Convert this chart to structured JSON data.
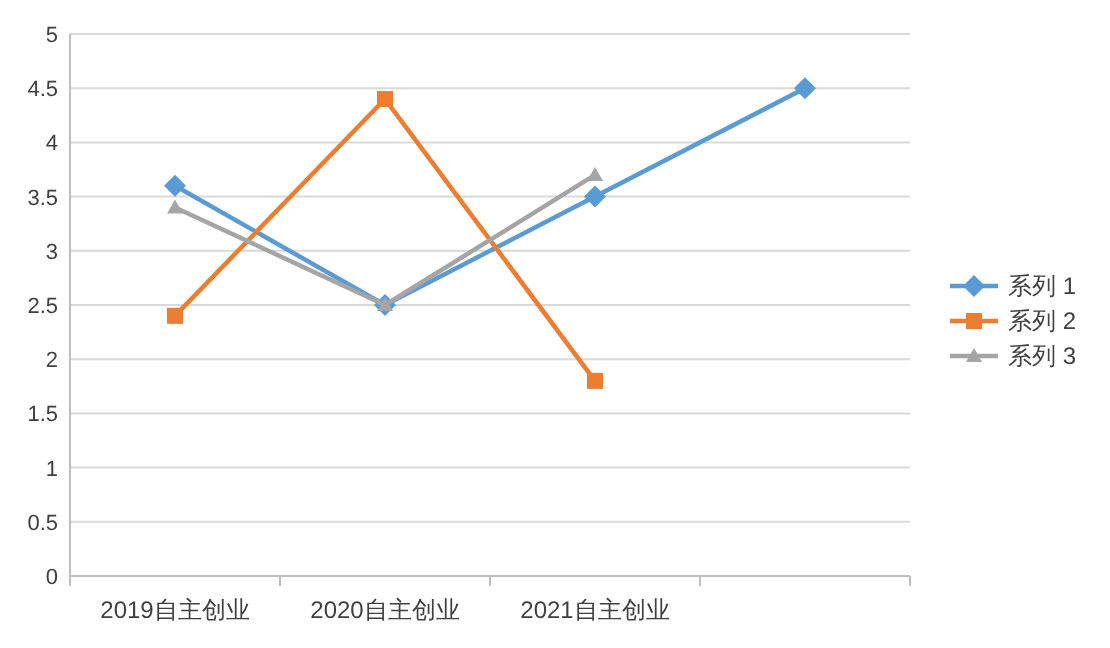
{
  "chart_data": {
    "type": "line",
    "categories": [
      "2019自主创业",
      "2020自主创业",
      "2021自主创业",
      null
    ],
    "series": [
      {
        "name": "系列 1",
        "color": "#5b9bd5",
        "marker": "diamond",
        "values": [
          3.6,
          2.5,
          3.5,
          4.5
        ]
      },
      {
        "name": "系列 2",
        "color": "#ed7d31",
        "marker": "square",
        "values": [
          2.4,
          4.4,
          1.8,
          null
        ]
      },
      {
        "name": "系列 3",
        "color": "#a5a5a5",
        "marker": "triangle",
        "values": [
          3.4,
          2.5,
          3.7,
          null
        ]
      }
    ],
    "ylim": [
      0,
      5
    ],
    "yticks": [
      0,
      0.5,
      1,
      1.5,
      2,
      2.5,
      3,
      3.5,
      4,
      4.5,
      5
    ],
    "grid": "y",
    "legend": "right"
  }
}
